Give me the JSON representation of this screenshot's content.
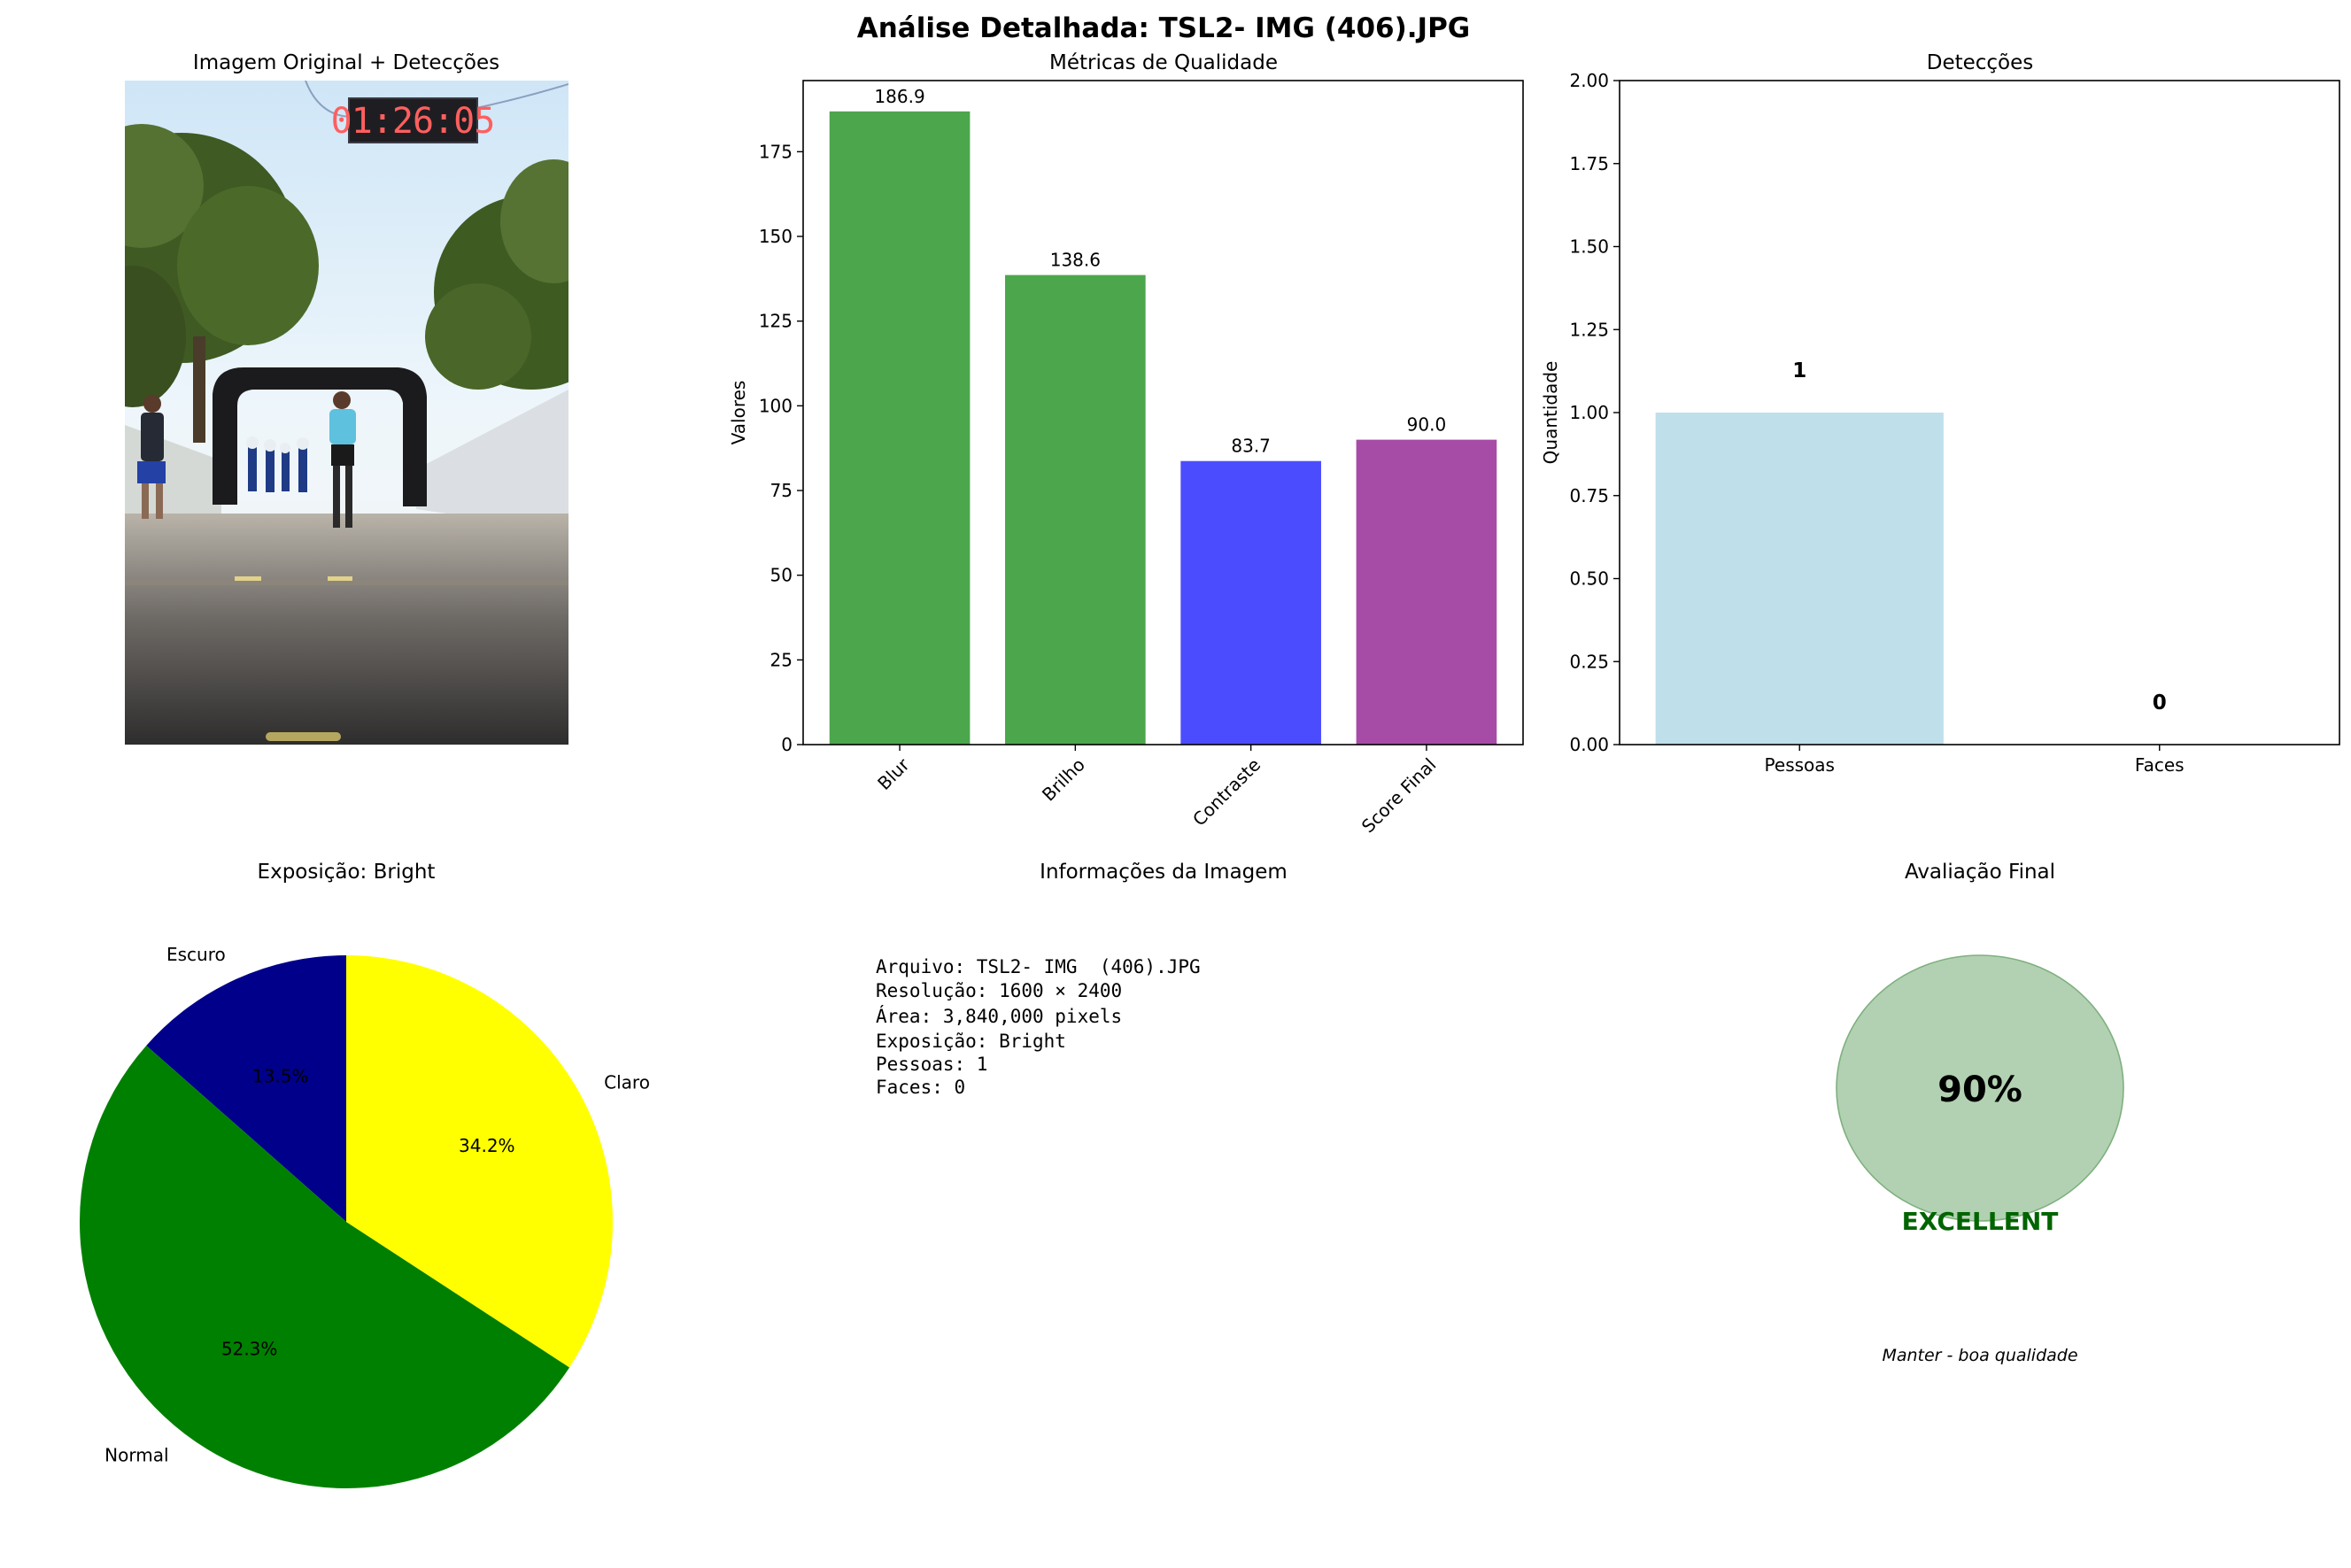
{
  "figure": {
    "title": "Análise Detalhada: TSL2- IMG  (406).JPG"
  },
  "photo_panel": {
    "title": "Imagem Original + Detecções",
    "clock_text": "01:26:05"
  },
  "chart_data": [
    {
      "id": "metrics",
      "type": "bar",
      "title": "Métricas de Qualidade",
      "xlabel": "",
      "ylabel": "Valores",
      "categories": [
        "Blur",
        "Brilho",
        "Contraste",
        "Score Final"
      ],
      "values": [
        186.9,
        138.6,
        83.7,
        90.0
      ],
      "value_labels": [
        "186.9",
        "138.6",
        "83.7",
        "90.0"
      ],
      "colors": [
        "#4ca64c",
        "#4ca64c",
        "#4c4cff",
        "#a64ca6"
      ],
      "ylim": [
        0,
        196
      ],
      "yticks": [
        0,
        25,
        50,
        75,
        100,
        125,
        150,
        175
      ],
      "grid": false
    },
    {
      "id": "detections",
      "type": "bar",
      "title": "Detecções",
      "xlabel": "",
      "ylabel": "Quantidade",
      "categories": [
        "Pessoas",
        "Faces"
      ],
      "values": [
        1,
        0
      ],
      "value_labels": [
        "1",
        "0"
      ],
      "colors": [
        "#bfdfea",
        "#f4b9c3"
      ],
      "ylim": [
        0,
        2
      ],
      "yticks": [
        "0.00",
        "0.25",
        "0.50",
        "0.75",
        "1.00",
        "1.25",
        "1.50",
        "1.75",
        "2.00"
      ],
      "grid": false
    },
    {
      "id": "exposure",
      "type": "pie",
      "title": "Exposição: Bright",
      "labels": [
        "Escuro",
        "Normal",
        "Claro"
      ],
      "values": [
        13.5,
        52.3,
        34.2
      ],
      "value_labels": [
        "13.5%",
        "52.3%",
        "34.2%"
      ],
      "colors": [
        "#00008b",
        "#008000",
        "#ffff00"
      ],
      "start_angle_deg": 90,
      "direction": "counterclockwise"
    }
  ],
  "info_panel": {
    "title": "Informações da Imagem",
    "lines": [
      "Arquivo: TSL2- IMG  (406).JPG",
      "Resolução: 1600 × 2400",
      "Área: 3,840,000 pixels",
      "Exposição: Bright",
      "Pessoas: 1",
      "Faces: 0"
    ]
  },
  "final_panel": {
    "title": "Avaliação Final",
    "score_text": "90%",
    "score": 0.9,
    "rating": "EXCELLENT",
    "recommendation": "Manter - boa qualidade",
    "circle_color": "#b2d1b2",
    "rating_color": "#006400"
  }
}
